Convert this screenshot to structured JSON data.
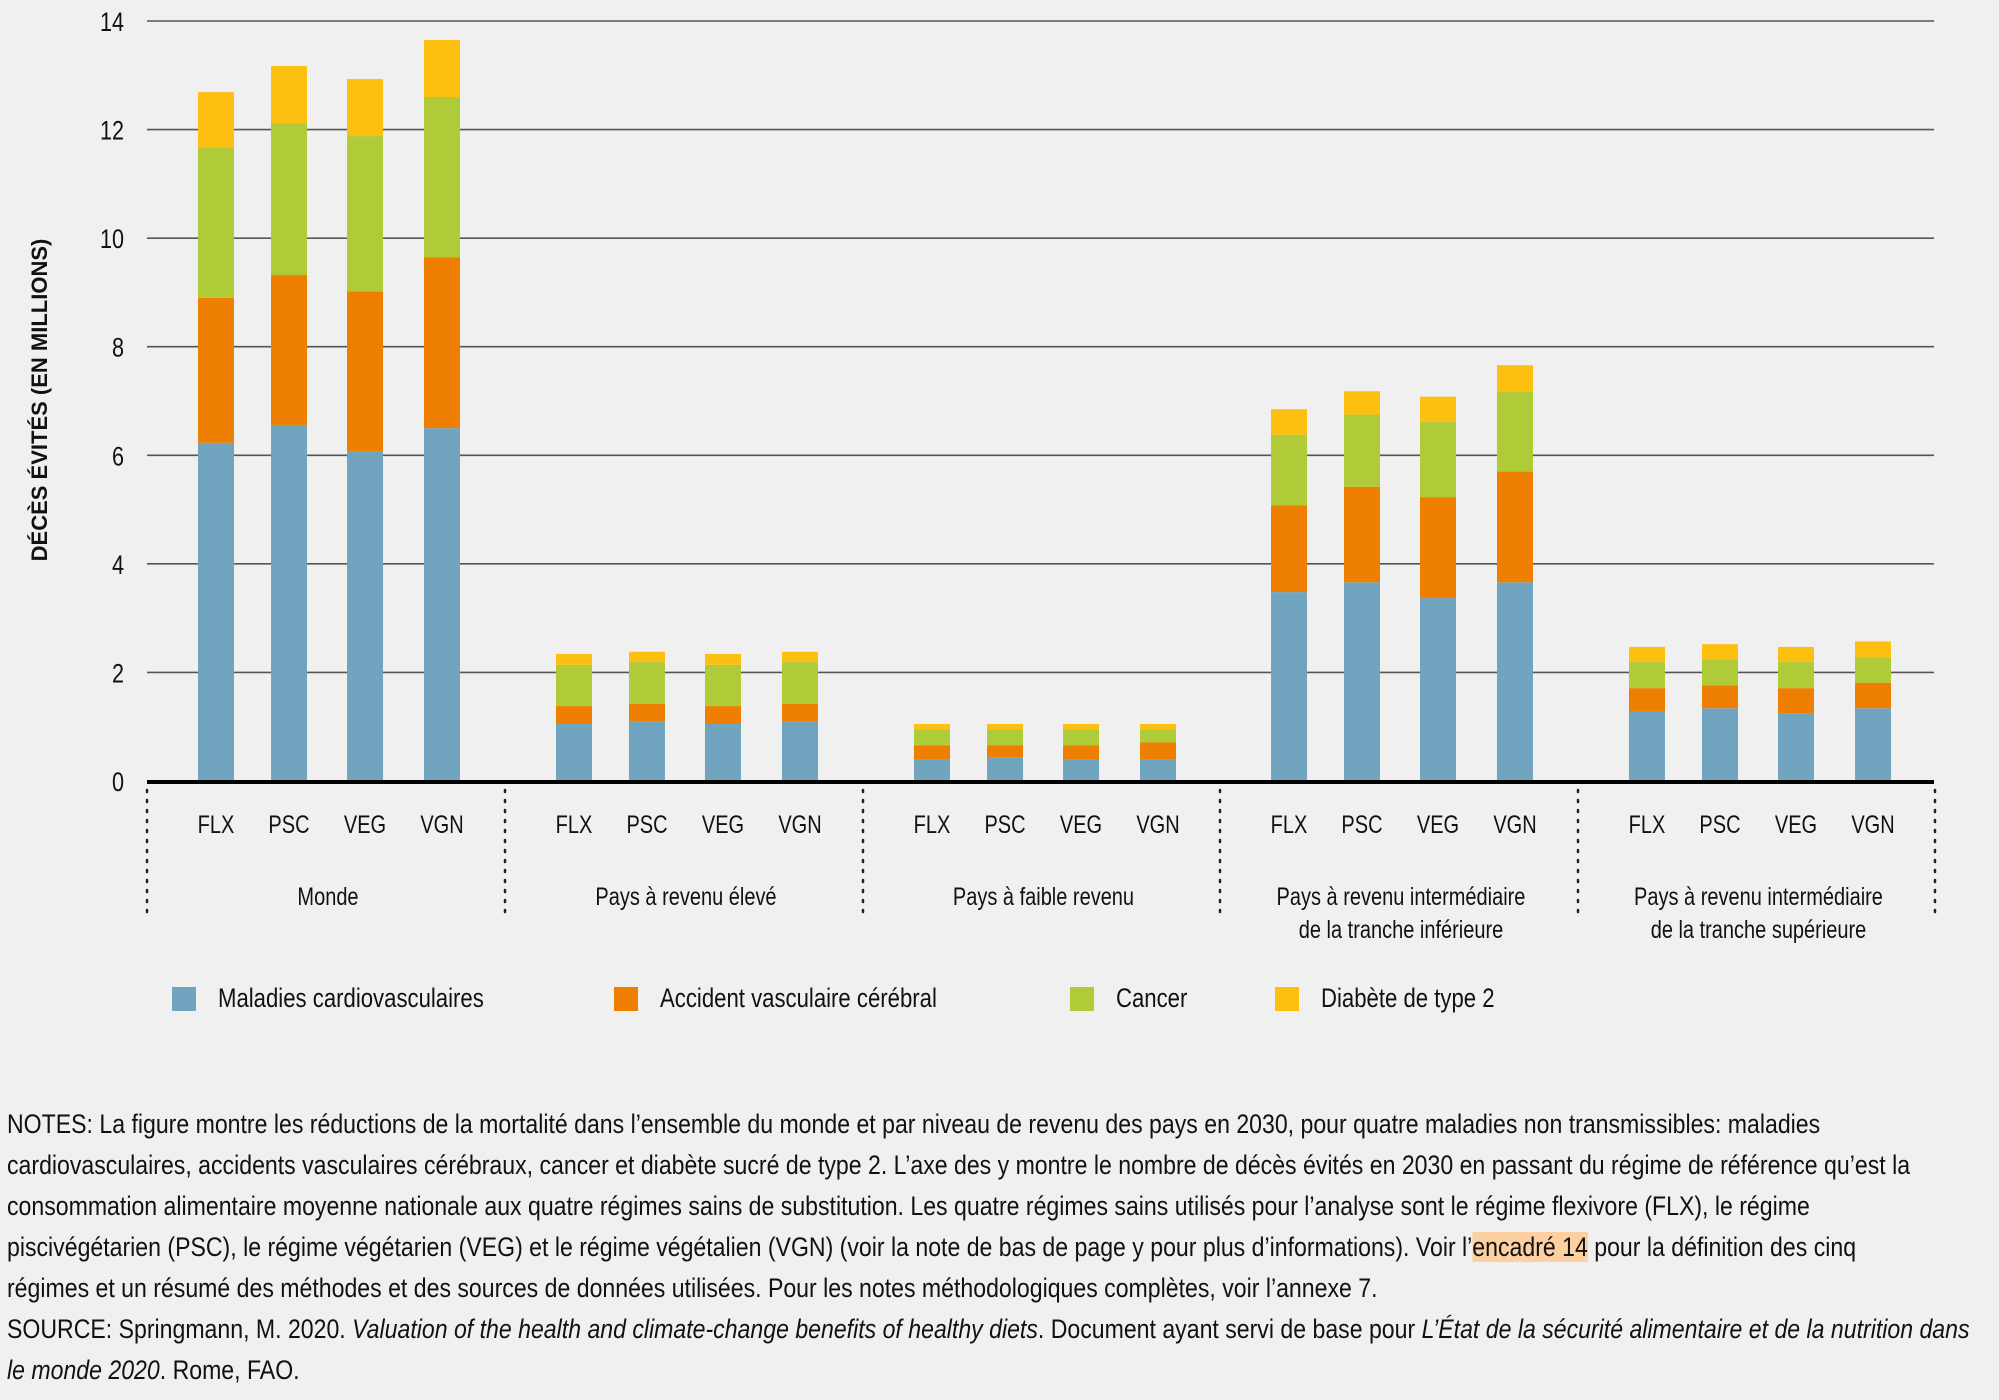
{
  "chart_data": {
    "type": "bar",
    "stacked": true,
    "title": "",
    "xlabel": "",
    "ylabel": "DÉCÈS ÉVITÉS (EN MILLIONS)",
    "ylim": [
      0,
      14
    ],
    "yticks": [
      0,
      2,
      4,
      6,
      8,
      10,
      12,
      14
    ],
    "grid": true,
    "legend_position": "bottom",
    "groups": [
      {
        "label": "Monde",
        "categories": [
          "FLX",
          "PSC",
          "VEG",
          "VGN"
        ]
      },
      {
        "label": "Pays à revenu élevé",
        "categories": [
          "FLX",
          "PSC",
          "VEG",
          "VGN"
        ]
      },
      {
        "label": "Pays à faible revenu",
        "categories": [
          "FLX",
          "PSC",
          "VEG",
          "VGN"
        ]
      },
      {
        "label": "Pays à revenu intermédiaire\nde la tranche inférieure",
        "categories": [
          "FLX",
          "PSC",
          "VEG",
          "VGN"
        ]
      },
      {
        "label": "Pays à revenu intermédiaire\nde la tranche supérieure",
        "categories": [
          "FLX",
          "PSC",
          "VEG",
          "VGN"
        ]
      }
    ],
    "series": [
      {
        "name": "Maladies cardiovasculaires",
        "color": "#71a5bf",
        "values": [
          6.23,
          6.56,
          6.08,
          6.5,
          1.05,
          1.09,
          1.05,
          1.09,
          0.39,
          0.43,
          0.39,
          0.39,
          3.48,
          3.66,
          3.37,
          3.66,
          1.29,
          1.34,
          1.24,
          1.34
        ]
      },
      {
        "name": "Accident vasculaire cérébral",
        "color": "#ef7f00",
        "values": [
          2.67,
          2.76,
          2.94,
          3.15,
          0.33,
          0.33,
          0.33,
          0.33,
          0.27,
          0.23,
          0.27,
          0.32,
          1.6,
          1.76,
          1.86,
          2.04,
          0.42,
          0.42,
          0.47,
          0.47
        ]
      },
      {
        "name": "Cancer",
        "color": "#b0cb38",
        "values": [
          2.76,
          2.8,
          2.86,
          2.95,
          0.76,
          0.77,
          0.76,
          0.77,
          0.29,
          0.29,
          0.29,
          0.24,
          1.3,
          1.33,
          1.38,
          1.48,
          0.48,
          0.47,
          0.48,
          0.47
        ]
      },
      {
        "name": "Diabète de type 2",
        "color": "#fdbf10",
        "values": [
          1.03,
          1.05,
          1.05,
          1.05,
          0.2,
          0.19,
          0.2,
          0.19,
          0.1,
          0.1,
          0.1,
          0.1,
          0.47,
          0.43,
          0.47,
          0.48,
          0.28,
          0.29,
          0.28,
          0.29
        ]
      }
    ]
  },
  "notes": {
    "line1": "NOTES: La figure montre les réductions de la mortalité dans l’ensemble du monde et par niveau de revenu des pays en 2030, pour quatre maladies non transmissibles: maladies",
    "line2": "cardiovasculaires, accidents vasculaires cérébraux, cancer et diabète sucré de type 2. L’axe des y montre le nombre de décès évités en 2030 en passant du régime de référence qu’est la",
    "line3": "consommation alimentaire moyenne nationale aux quatre régimes sains de substitution. Les quatre régimes sains utilisés pour l’analyse sont le régime flexivore (FLX), le régime",
    "line4_before": "piscivégétarien (PSC), le régime végétarien (VEG) et le régime végétalien (VGN) (voir la note de bas de page y pour plus d’informations). Voir l’",
    "line4_link": "encadré 14",
    "line4_after": " pour la définition des cinq",
    "line5": "régimes et un résumé des méthodes et des sources de données utilisées. Pour les notes méthodologiques complètes, voir l’annexe 7.",
    "source_prefix": "SOURCE: Springmann, M. 2020. ",
    "source_title": "Valuation of the health and climate-change benefits of healthy diets",
    "source_mid": ". Document ayant servi de base pour ",
    "source_pub": "L’État de la sécurité alimentaire et de la nutrition dans le monde 2020",
    "source_end": ". Rome, FAO."
  }
}
